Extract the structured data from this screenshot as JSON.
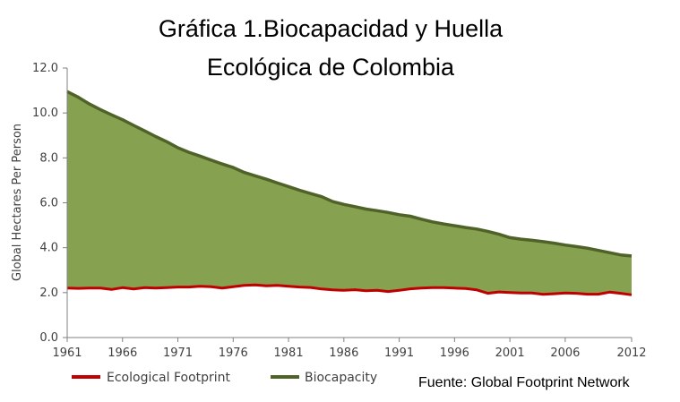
{
  "chart_data": {
    "type": "area",
    "title_lines": [
      "Gráfica 1.Biocapacidad y Huella",
      "Ecológica de Colombia"
    ],
    "ylabel": "Global Hectares Per Person",
    "xlabel": "",
    "xlim": [
      1961,
      2012
    ],
    "ylim": [
      0,
      12
    ],
    "y_ticks": [
      "0.0",
      "2.0",
      "4.0",
      "6.0",
      "8.0",
      "10.0",
      "12.0"
    ],
    "x_ticks": [
      "1961",
      "1966",
      "1971",
      "1976",
      "1981",
      "1986",
      "1991",
      "1996",
      "2001",
      "2006",
      "2012"
    ],
    "x": [
      1961,
      1962,
      1963,
      1964,
      1965,
      1966,
      1967,
      1968,
      1969,
      1970,
      1971,
      1972,
      1973,
      1974,
      1975,
      1976,
      1977,
      1978,
      1979,
      1980,
      1981,
      1982,
      1983,
      1984,
      1985,
      1986,
      1987,
      1988,
      1989,
      1990,
      1991,
      1992,
      1993,
      1994,
      1995,
      1996,
      1997,
      1998,
      1999,
      2000,
      2001,
      2002,
      2003,
      2004,
      2005,
      2006,
      2007,
      2008,
      2009,
      2010,
      2011,
      2012
    ],
    "series": [
      {
        "name": "Ecological Footprint",
        "color": "#c00000",
        "values": [
          2.2,
          2.19,
          2.2,
          2.2,
          2.14,
          2.22,
          2.16,
          2.22,
          2.2,
          2.22,
          2.25,
          2.25,
          2.28,
          2.26,
          2.2,
          2.26,
          2.32,
          2.34,
          2.3,
          2.32,
          2.28,
          2.25,
          2.23,
          2.16,
          2.12,
          2.1,
          2.13,
          2.08,
          2.1,
          2.05,
          2.1,
          2.17,
          2.2,
          2.22,
          2.22,
          2.2,
          2.18,
          2.12,
          1.97,
          2.03,
          2.0,
          1.98,
          1.98,
          1.92,
          1.95,
          1.98,
          1.97,
          1.93,
          1.93,
          2.02,
          1.97,
          1.9
        ]
      },
      {
        "name": "Biocapacity",
        "color": "#4f6228",
        "fill": "#86a150",
        "values": [
          10.95,
          10.7,
          10.4,
          10.15,
          9.92,
          9.7,
          9.45,
          9.2,
          8.95,
          8.72,
          8.45,
          8.25,
          8.08,
          7.9,
          7.73,
          7.57,
          7.35,
          7.2,
          7.05,
          6.88,
          6.72,
          6.56,
          6.41,
          6.27,
          6.05,
          5.93,
          5.83,
          5.72,
          5.65,
          5.57,
          5.47,
          5.4,
          5.27,
          5.15,
          5.06,
          4.98,
          4.9,
          4.83,
          4.73,
          4.6,
          4.45,
          4.38,
          4.33,
          4.27,
          4.2,
          4.12,
          4.05,
          3.98,
          3.88,
          3.78,
          3.68,
          3.63
        ]
      }
    ],
    "grid": false,
    "legend": "bottom-left",
    "source": "Fuente: Global Footprint Network"
  }
}
